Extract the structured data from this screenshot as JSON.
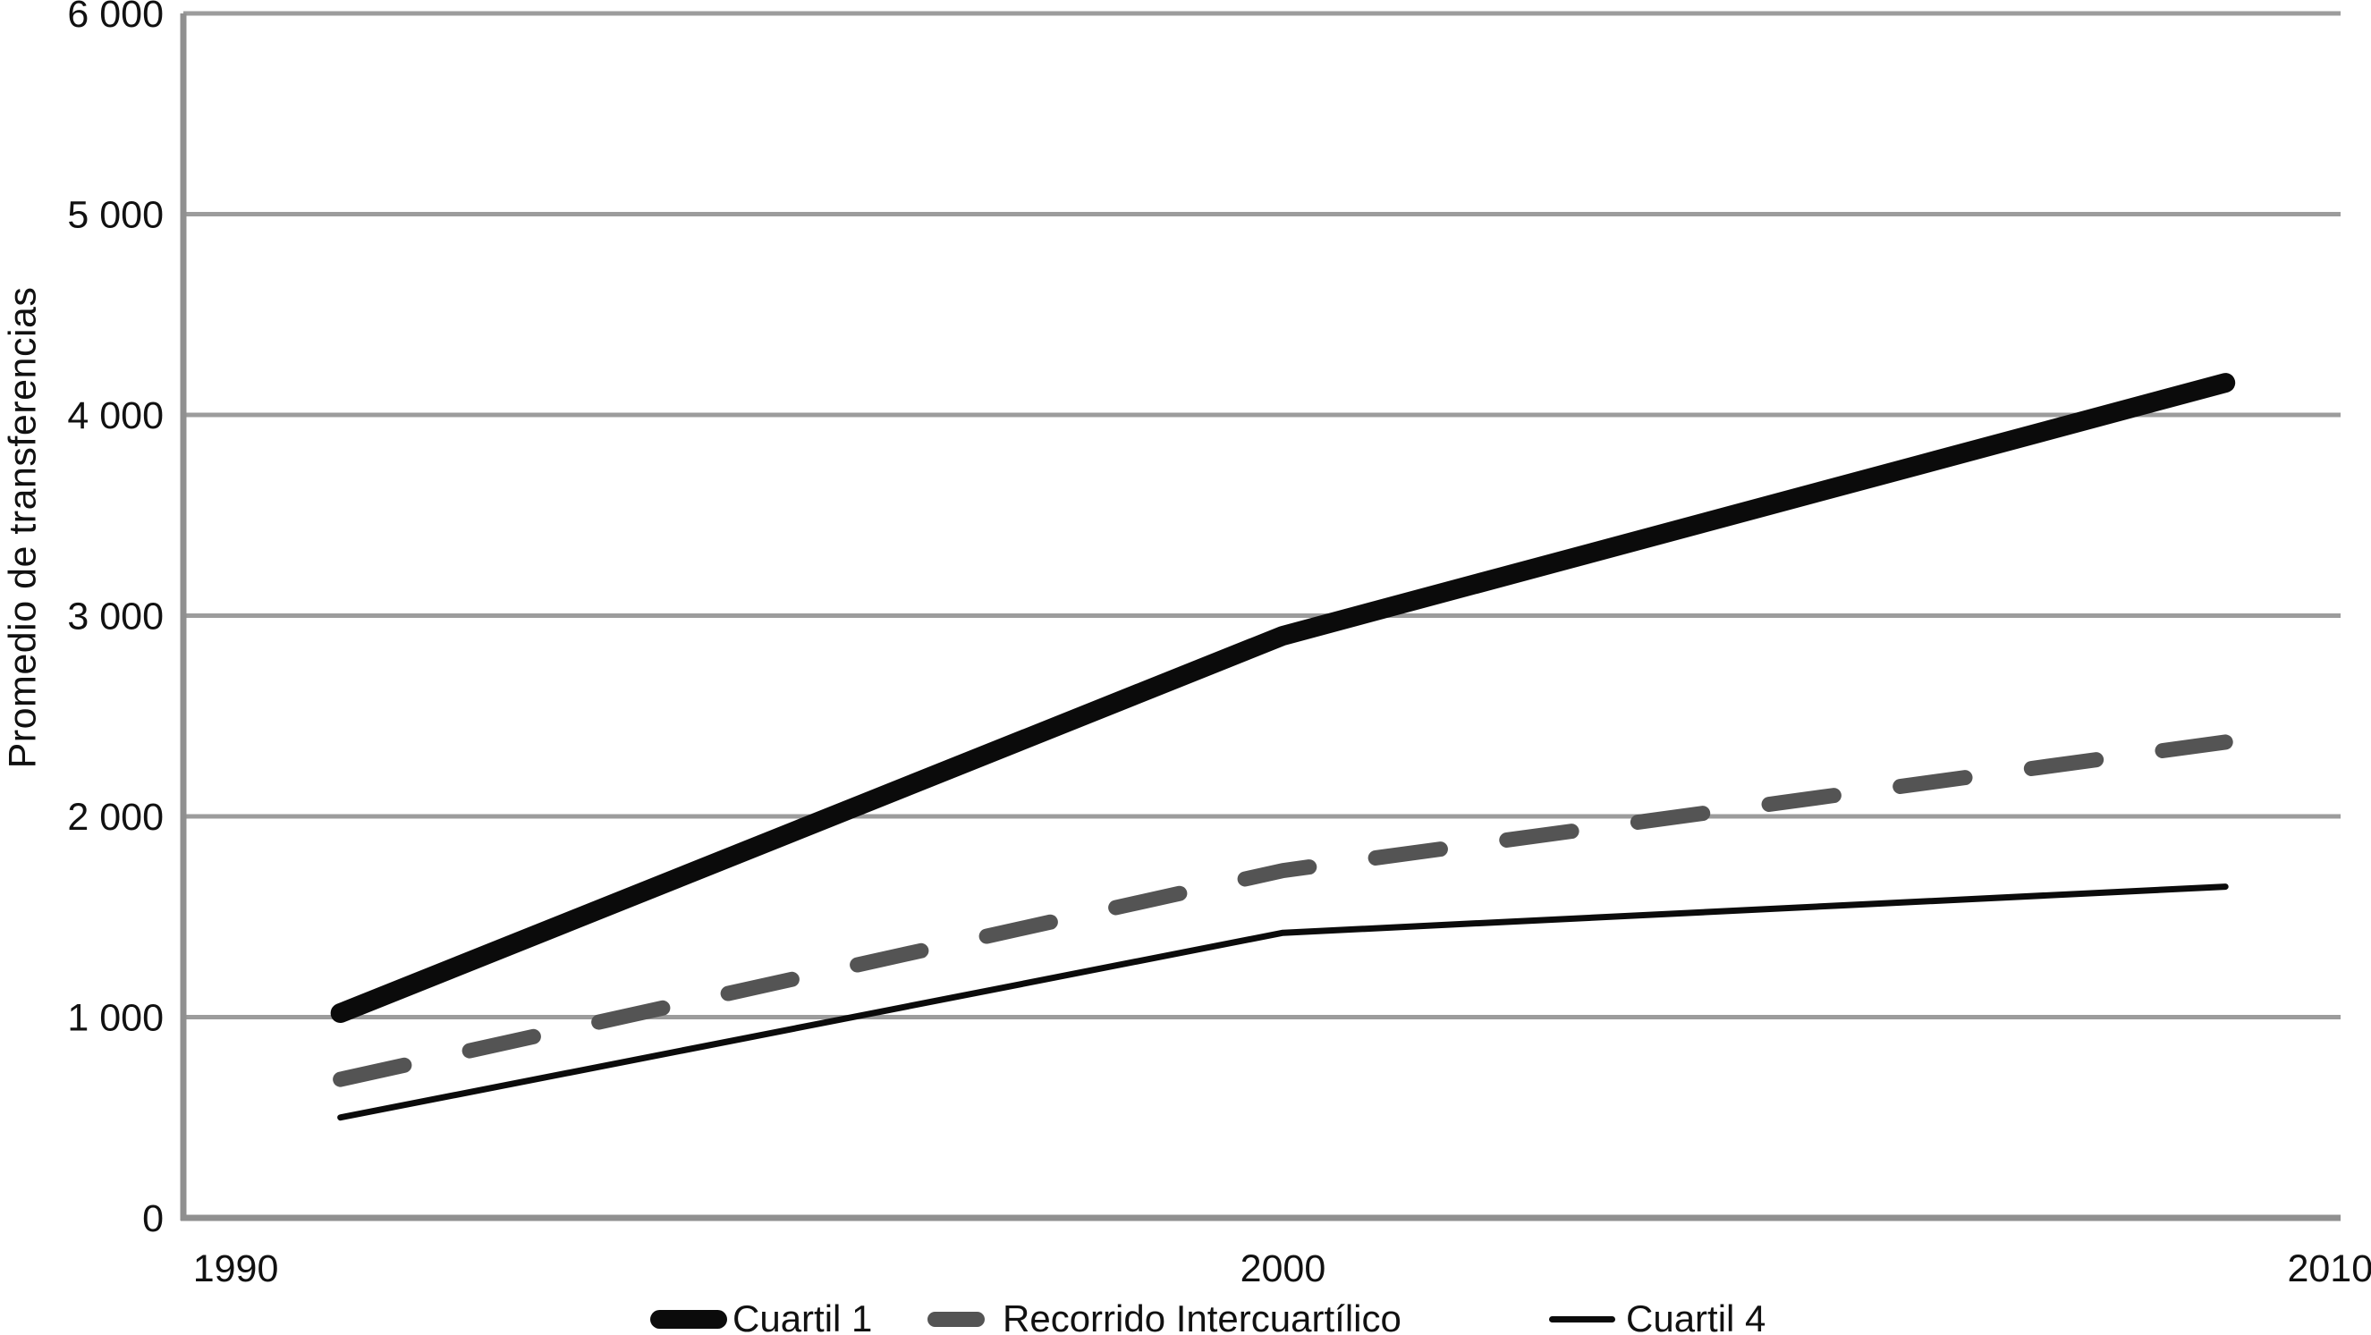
{
  "chart_data": {
    "type": "line",
    "title": "",
    "x_axis": {
      "tick_labels": [
        "1990",
        "2000",
        "2010"
      ],
      "tick_values": [
        1990,
        2000,
        2010
      ],
      "range": [
        1989.5,
        2010.1
      ]
    },
    "y_axis": {
      "label": "Promedio de transferencias",
      "range": [
        0,
        6000
      ],
      "ticks": [
        {
          "value": 0,
          "label": "0"
        },
        {
          "value": 1000,
          "label": "1 000"
        },
        {
          "value": 2000,
          "label": "2 000"
        },
        {
          "value": 3000,
          "label": "3 000"
        },
        {
          "value": 4000,
          "label": "4 000"
        },
        {
          "value": 5000,
          "label": "5 000"
        },
        {
          "value": 6000,
          "label": "6 000"
        }
      ]
    },
    "grid": "horizontal-only",
    "legend_position": "bottom",
    "x": [
      1991,
      2000,
      2009
    ],
    "series": [
      {
        "name": "Cuartil 1",
        "values": [
          1020,
          2900,
          4160
        ],
        "color": "#0b0b0b",
        "style": "solid",
        "stroke_width": 22
      },
      {
        "name": "Recorrido Intercuartílico",
        "values": [
          690,
          1730,
          2370
        ],
        "color": "#545454",
        "style": "dashed",
        "stroke_width": 17
      },
      {
        "name": "Cuartil 4",
        "values": [
          500,
          1420,
          1650
        ],
        "color": "#0b0b0b",
        "style": "solid",
        "stroke_width": 7
      }
    ]
  },
  "colors": {
    "background": "#ffffff",
    "gridline": "#9c9c9c",
    "axis": "#909090",
    "text": "#111111"
  }
}
